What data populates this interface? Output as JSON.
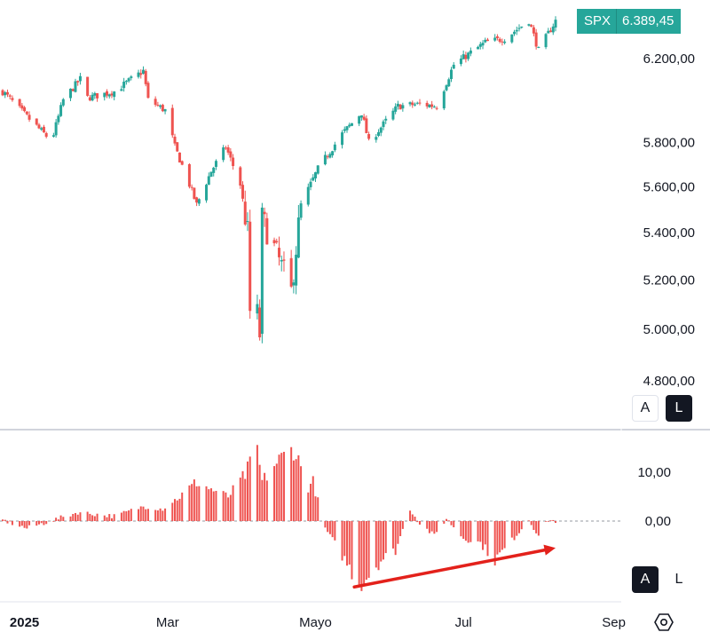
{
  "symbol": "SPX",
  "last_price": "6.389,45",
  "colors": {
    "up": "#26a69a",
    "down": "#ef5350",
    "hist": "#ef5350",
    "arrow": "#e3211b",
    "grid": "#e0e3eb"
  },
  "price_axis": {
    "ticks": [
      "6.200,00",
      "5.800,00",
      "5.600,00",
      "5.400,00",
      "5.200,00",
      "5.000,00",
      "4.800,00"
    ],
    "tick_values": [
      6200,
      5800,
      5600,
      5400,
      5200,
      5000,
      4800
    ]
  },
  "osc_axis": {
    "ticks": [
      "10,00",
      "0,00"
    ],
    "tick_values": [
      10,
      0
    ]
  },
  "time_axis": {
    "labels": [
      "2025",
      "Mar",
      "Mayo",
      "Jul",
      "Sep"
    ]
  },
  "buttons": {
    "auto_label": "A",
    "log_label": "L"
  },
  "chart_data": {
    "type": "candlestick",
    "series_name": "SPX",
    "x_range": [
      "2024-12-23",
      "2025-08-08"
    ],
    "price_points": [
      [
        "2024-12-23",
        6040
      ],
      [
        "2025-01-02",
        5920
      ],
      [
        "2025-01-10",
        5830
      ],
      [
        "2025-01-13",
        5840
      ],
      [
        "2025-01-17",
        6000
      ],
      [
        "2025-01-24",
        6100
      ],
      [
        "2025-01-27",
        6010
      ],
      [
        "2025-02-07",
        6040
      ],
      [
        "2025-02-19",
        6140
      ],
      [
        "2025-02-21",
        6000
      ],
      [
        "2025-02-28",
        5950
      ],
      [
        "2025-03-04",
        5780
      ],
      [
        "2025-03-10",
        5610
      ],
      [
        "2025-03-13",
        5520
      ],
      [
        "2025-03-19",
        5670
      ],
      [
        "2025-03-25",
        5780
      ],
      [
        "2025-03-31",
        5610
      ],
      [
        "2025-04-03",
        5400
      ],
      [
        "2025-04-04",
        5070
      ],
      [
        "2025-04-07",
        5060
      ],
      [
        "2025-04-08",
        4980
      ],
      [
        "2025-04-09",
        5460
      ],
      [
        "2025-04-16",
        5280
      ],
      [
        "2025-04-21",
        5150
      ],
      [
        "2025-04-25",
        5520
      ],
      [
        "2025-05-02",
        5680
      ],
      [
        "2025-05-12",
        5840
      ],
      [
        "2025-05-20",
        5940
      ],
      [
        "2025-05-23",
        5800
      ],
      [
        "2025-06-04",
        5970
      ],
      [
        "2025-06-13",
        5980
      ],
      [
        "2025-06-20",
        5970
      ],
      [
        "2025-06-27",
        6170
      ],
      [
        "2025-07-10",
        6280
      ],
      [
        "2025-07-18",
        6300
      ],
      [
        "2025-07-28",
        6390
      ],
      [
        "2025-08-01",
        6240
      ],
      [
        "2025-08-08",
        6389.45
      ]
    ],
    "oscillator": [
      [
        "2024-12-23",
        0.2
      ],
      [
        "2025-01-02",
        -1.5
      ],
      [
        "2025-01-15",
        0.5
      ],
      [
        "2025-01-23",
        1.8
      ],
      [
        "2025-02-07",
        1.0
      ],
      [
        "2025-02-19",
        3.0
      ],
      [
        "2025-02-27",
        2.5
      ],
      [
        "2025-03-06",
        5.0
      ],
      [
        "2025-03-13",
        8.0
      ],
      [
        "2025-03-19",
        6.5
      ],
      [
        "2025-03-26",
        5.0
      ],
      [
        "2025-04-02",
        9.5
      ],
      [
        "2025-04-07",
        14.5
      ],
      [
        "2025-04-09",
        8.0
      ],
      [
        "2025-04-15",
        12.0
      ],
      [
        "2025-04-22",
        15.0
      ],
      [
        "2025-04-28",
        7.0
      ],
      [
        "2025-04-30",
        8.0
      ],
      [
        "2025-05-05",
        -1.5
      ],
      [
        "2025-05-12",
        -7.0
      ],
      [
        "2025-05-19",
        -13.0
      ],
      [
        "2025-05-22",
        -11.5
      ],
      [
        "2025-05-28",
        -8.0
      ],
      [
        "2025-06-03",
        -6.0
      ],
      [
        "2025-06-09",
        2.5
      ],
      [
        "2025-06-13",
        -0.5
      ],
      [
        "2025-06-19",
        -3.0
      ],
      [
        "2025-06-24",
        0.5
      ],
      [
        "2025-07-01",
        -3.5
      ],
      [
        "2025-07-08",
        -4.5
      ],
      [
        "2025-07-14",
        -8.0
      ],
      [
        "2025-07-21",
        -4.0
      ],
      [
        "2025-07-28",
        0.3
      ],
      [
        "2025-08-01",
        -3.0
      ],
      [
        "2025-08-05",
        0.2
      ],
      [
        "2025-08-08",
        0.0
      ]
    ],
    "trend_arrow": {
      "from": [
        "2025-05-17",
        -13.5
      ],
      "to": [
        "2025-08-08",
        -5.5
      ]
    },
    "price_ylim": [
      4745,
      6480
    ],
    "osc_ylim": [
      -15,
      17
    ],
    "zero_line": 0
  }
}
